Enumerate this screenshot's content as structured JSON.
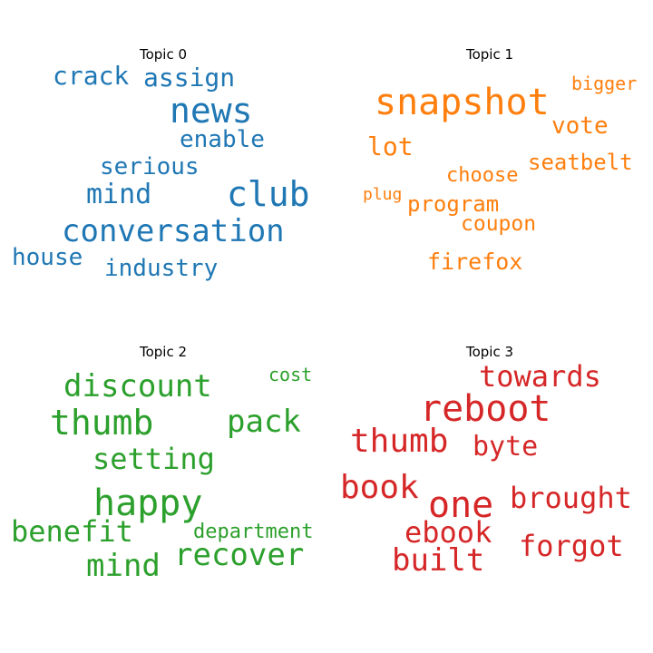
{
  "topics": [
    {
      "title": "Topic 0",
      "color": "#1f77b4",
      "words": [
        "news",
        "club",
        "conversation",
        "crack",
        "assign",
        "mind",
        "enable",
        "serious",
        "house",
        "industry"
      ]
    },
    {
      "title": "Topic 1",
      "color": "#ff7f0e",
      "words": [
        "snapshot",
        "bigger",
        "vote",
        "lot",
        "seatbelt",
        "choose",
        "plug",
        "program",
        "coupon",
        "firefox"
      ]
    },
    {
      "title": "Topic 2",
      "color": "#2ca02c",
      "words": [
        "cost",
        "discount",
        "thumb",
        "pack",
        "setting",
        "happy",
        "benefit",
        "department",
        "recover",
        "mind"
      ]
    },
    {
      "title": "Topic 3",
      "color": "#d62728",
      "words": [
        "towards",
        "reboot",
        "thumb",
        "byte",
        "book",
        "one",
        "brought",
        "ebook",
        "forgot",
        "built"
      ]
    }
  ]
}
